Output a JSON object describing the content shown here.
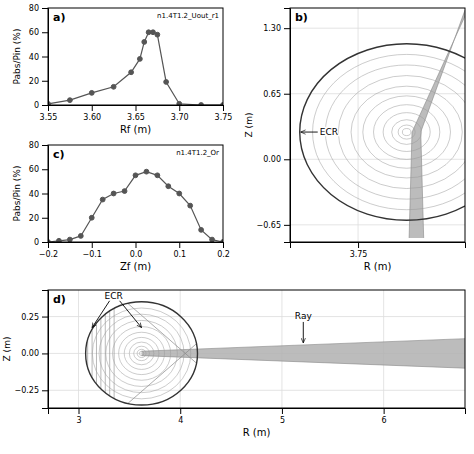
{
  "chart_data": [
    {
      "type": "line",
      "title": "a)",
      "annotations": [
        "n1.4T1.2_Uout_r1"
      ],
      "x": [
        3.55,
        3.575,
        3.6,
        3.625,
        3.645,
        3.655,
        3.66,
        3.665,
        3.67,
        3.675,
        3.685,
        3.7,
        3.725,
        3.75
      ],
      "values": [
        1,
        4,
        10,
        15,
        27,
        38,
        52,
        60,
        60,
        58,
        19,
        1,
        0,
        0
      ],
      "xlabel": "Rf (m)",
      "ylabel": "Pabs/Pin (%)",
      "xlim": [
        3.55,
        3.75
      ],
      "ylim": [
        0,
        80
      ],
      "xticks": [
        3.55,
        {
          "value": 3.6,
          "label": "3.60"
        },
        3.65,
        {
          "value": 3.7,
          "label": "3.70"
        },
        3.75
      ],
      "yticks": [
        0,
        20,
        40,
        60,
        80
      ],
      "color": "#555555",
      "marker": "circle",
      "grid": false
    },
    {
      "type": "diagram",
      "title": "b)",
      "annotations": [
        "ECR"
      ],
      "xlabel": "R (m)",
      "ylabel": "Z (m)",
      "xlim": [
        3.68,
        3.86
      ],
      "ylim": [
        -0.82,
        1.5
      ],
      "xticks": [
        3.75
      ],
      "yticks": [
        {
          "value": -0.65,
          "label": "−0.65"
        },
        {
          "value": 0.0,
          "label": "0.00"
        },
        0.65,
        {
          "value": 1.3,
          "label": "1.30"
        }
      ],
      "grid": true,
      "ellipse": {
        "cx": 3.8,
        "cy": 0.27,
        "w": 0.22,
        "h": 1.75
      },
      "nested_scales": [
        0.88,
        0.76,
        0.64,
        0.52,
        0.41,
        0.31,
        0.22,
        0.14,
        0.08,
        0.04
      ],
      "beam": {
        "upper": {
          "x": [
            3.86,
            3.8145,
            3.8175
          ],
          "y": [
            1.48,
            0.2715,
            -0.78
          ]
        },
        "lower": {
          "x": [
            3.86,
            3.8055,
            3.8025
          ],
          "y": [
            1.42,
            0.2685,
            -0.78
          ]
        }
      }
    },
    {
      "type": "line",
      "title": "c)",
      "annotations": [
        "n1.4T1.2_Or"
      ],
      "x": [
        -0.2,
        -0.175,
        -0.15,
        -0.125,
        -0.1,
        -0.075,
        -0.05,
        -0.025,
        0.0,
        0.025,
        0.05,
        0.075,
        0.1,
        0.125,
        0.15,
        0.175,
        0.2
      ],
      "values": [
        0,
        1,
        2,
        5,
        20,
        35,
        40,
        42,
        55,
        58,
        55,
        46,
        40,
        30,
        10,
        2,
        0
      ],
      "xlabel": "Zf (m)",
      "ylabel": "Pabs/Pin (%)",
      "xlim": [
        -0.2,
        0.2
      ],
      "ylim": [
        0,
        80
      ],
      "xticks": [
        {
          "value": -0.2,
          "label": "−0.2"
        },
        {
          "value": -0.1,
          "label": "−0.1"
        },
        {
          "value": 0,
          "label": "0.0"
        },
        0.1,
        0.2
      ],
      "yticks": [
        0,
        20,
        40,
        60,
        80
      ],
      "color": "#555555",
      "marker": "circle",
      "grid": false
    },
    {
      "type": "diagram",
      "title": "d)",
      "annotations": [
        "ECR",
        "Ray"
      ],
      "xlabel": "R (m)",
      "ylabel": "Z (m)",
      "xlim": [
        2.7,
        6.8
      ],
      "ylim": [
        -0.37,
        0.43
      ],
      "xticks": [
        3,
        4,
        5,
        6
      ],
      "yticks": [
        {
          "value": -0.25,
          "label": "−0.25"
        },
        {
          "value": 0,
          "label": "0.00"
        },
        0.25
      ],
      "grid": true,
      "ellipse": {
        "cx": 3.62,
        "cy": 0.0,
        "w": 1.1,
        "h": 0.7
      },
      "nested_scales": [
        0.88,
        0.76,
        0.64,
        0.52,
        0.41,
        0.31,
        0.22,
        0.14,
        0.08,
        0.04
      ],
      "resonance_x": [
        3.09,
        3.1333333,
        3.1766667,
        3.22,
        3.2633333,
        3.3066667,
        3.35
      ],
      "field_lines": [
        {
          "slope": -0.6,
          "x0": 4.05
        },
        {
          "slope": 0.6,
          "x0": 4.05
        }
      ],
      "beam": {
        "upper": {
          "x": [
            3.62,
            6.8
          ],
          "y": [
            0.015,
            0.1
          ]
        },
        "lower": {
          "x": [
            3.62,
            6.8
          ],
          "y": [
            -0.015,
            -0.1
          ]
        }
      }
    }
  ]
}
